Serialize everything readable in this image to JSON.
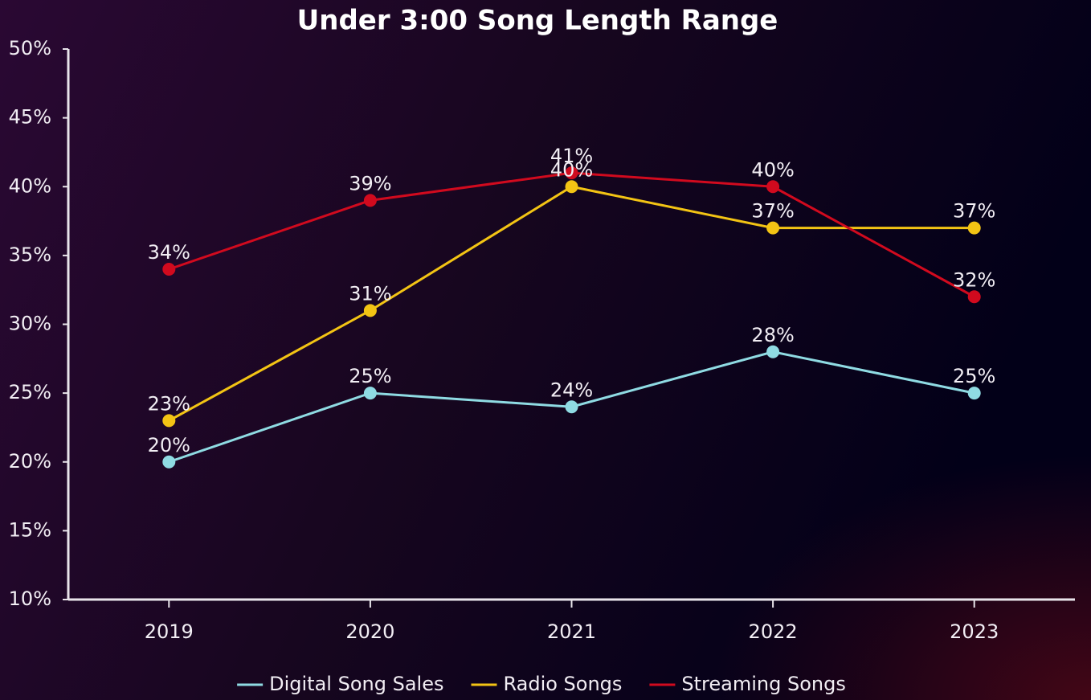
{
  "chart_data": {
    "type": "line",
    "title": "Under 3:00 Song Length Range",
    "categories": [
      "2019",
      "2020",
      "2021",
      "2022",
      "2023"
    ],
    "series": [
      {
        "name": "Digital Song Sales",
        "color": "#8fdbe3",
        "values": [
          20,
          25,
          24,
          28,
          25
        ],
        "value_labels": [
          "20%",
          "25%",
          "24%",
          "28%",
          "25%"
        ]
      },
      {
        "name": "Radio Songs",
        "color": "#f3c414",
        "values": [
          23,
          31,
          40,
          37,
          37
        ],
        "value_labels": [
          "23%",
          "31%",
          "40%",
          "37%",
          "37%"
        ]
      },
      {
        "name": "Streaming Songs",
        "color": "#d10a1e",
        "values": [
          34,
          39,
          41,
          40,
          32
        ],
        "value_labels": [
          "34%",
          "39%",
          "41%",
          "40%",
          "32%"
        ]
      }
    ],
    "ylim": [
      10,
      50
    ],
    "yticks": [
      {
        "value": 10,
        "label": "10%"
      },
      {
        "value": 15,
        "label": "15%"
      },
      {
        "value": 20,
        "label": "20%"
      },
      {
        "value": 25,
        "label": "25%"
      },
      {
        "value": 30,
        "label": "30%"
      },
      {
        "value": 35,
        "label": "35%"
      },
      {
        "value": 40,
        "label": "40%"
      },
      {
        "value": 45,
        "label": "45%"
      },
      {
        "value": 50,
        "label": "50%"
      }
    ],
    "grid": false,
    "legend": "bottom"
  }
}
